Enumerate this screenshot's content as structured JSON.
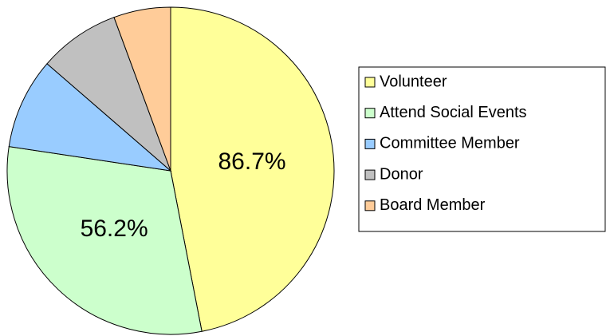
{
  "chart_data": {
    "type": "pie",
    "categories": [
      "Volunteer",
      "Attend Social Events",
      "Committee Member",
      "Donor",
      "Board Member"
    ],
    "values": [
      86.7,
      56.2,
      16.6,
      14.8,
      10.4
    ],
    "value_labels": [
      "86.7%",
      "56.2%",
      null,
      null,
      null
    ],
    "colors": [
      "#ffff99",
      "#ccffcc",
      "#99ccff",
      "#c0c0c0",
      "#ffcc99"
    ],
    "legend": "right"
  }
}
